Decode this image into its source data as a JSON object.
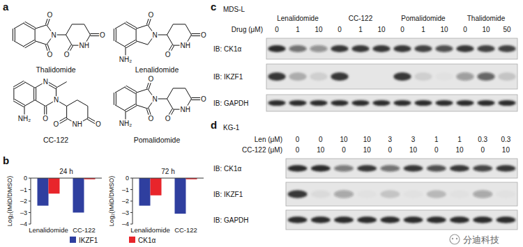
{
  "panel_a": {
    "label": "a",
    "molecules": [
      {
        "name": "Thalidomide",
        "atom_labels": [
          "O",
          "O",
          "N",
          "O",
          "O",
          "NH"
        ]
      },
      {
        "name": "Lenalidomide",
        "atom_labels": [
          "O",
          "N",
          "O",
          "O",
          "NH",
          "NH₂"
        ]
      },
      {
        "name": "CC-122",
        "atom_labels": [
          "N",
          "N",
          "O",
          "NH₂",
          "NH",
          "O",
          "O"
        ]
      },
      {
        "name": "Pomalidomide",
        "atom_labels": [
          "O",
          "O",
          "N",
          "O",
          "O",
          "NH",
          "NH₂"
        ]
      }
    ]
  },
  "panel_b": {
    "label": "b"
  },
  "chart_data": [
    {
      "type": "bar",
      "title": "24 h",
      "y_label": "Log₂(IMiD/DMSO)",
      "categories": [
        "Lenalidomide",
        "CC-122"
      ],
      "series": [
        {
          "name": "IKZF1",
          "color": "#2f3f9f",
          "values": [
            -2.4,
            -3.0
          ]
        },
        {
          "name": "CK1α",
          "color": "#e8252b",
          "values": [
            -1.35,
            -0.1
          ]
        }
      ],
      "ylim": [
        -4,
        0
      ],
      "yticks": [
        0,
        {
          "value": -1,
          "label": "–1"
        },
        {
          "value": -2,
          "label": "–2"
        },
        {
          "value": -3,
          "label": "–3"
        },
        {
          "value": -4,
          "label": "–4"
        }
      ],
      "legend": "bottom"
    },
    {
      "type": "bar",
      "title": "72 h",
      "y_label": "Log₂(IMiD/DMSO)",
      "categories": [
        "Lenalidomide",
        "CC-122"
      ],
      "series": [
        {
          "name": "IKZF1",
          "color": "#2f3f9f",
          "values": [
            -2.4,
            -3.1
          ]
        },
        {
          "name": "CK1α",
          "color": "#e8252b",
          "values": [
            -1.5,
            -0.1
          ]
        }
      ],
      "ylim": [
        -4,
        0
      ],
      "yticks": [
        0,
        {
          "value": -1,
          "label": "–1"
        },
        {
          "value": -2,
          "label": "–2"
        },
        {
          "value": -3,
          "label": "–3"
        },
        {
          "value": -4,
          "label": "–4"
        }
      ]
    }
  ],
  "panel_c": {
    "label": "c",
    "cell_line": "MDS-L",
    "dose_label": "Drug (μM)",
    "groups": [
      {
        "name": "Lenalidomide",
        "doses": [
          0,
          1,
          10
        ]
      },
      {
        "name": "CC-122",
        "doses": [
          0,
          1,
          10
        ]
      },
      {
        "name": "Pomalidomide",
        "doses": [
          0,
          1,
          10
        ]
      },
      {
        "name": "Thalidomide",
        "doses": [
          0,
          10,
          50
        ]
      }
    ],
    "blots": [
      {
        "label": "IB: CK1α",
        "intensity": [
          0.9,
          0.55,
          0.4,
          0.85,
          0.85,
          0.85,
          0.85,
          0.8,
          0.7,
          0.85,
          0.8,
          0.8
        ]
      },
      {
        "label": "IB: IKZF1",
        "intensity": [
          0.85,
          0.25,
          0.1,
          0.85,
          0,
          0,
          0.85,
          0.1,
          0.02,
          0.35,
          0.6,
          0.15
        ]
      },
      {
        "label": "IB: GAPDH",
        "intensity": [
          0.9,
          0.9,
          0.9,
          0.9,
          0.9,
          0.9,
          0.9,
          0.9,
          0.9,
          0.9,
          0.9,
          0.9
        ]
      }
    ]
  },
  "panel_d": {
    "label": "d",
    "cell_line": "KG-1",
    "treatments": [
      {
        "label": "Len (μM)",
        "doses": [
          0,
          0,
          10,
          10,
          3,
          3,
          1,
          1,
          0.3,
          0.3
        ]
      },
      {
        "label": "CC-122 (μM)",
        "doses": [
          0,
          10,
          0,
          10,
          0,
          10,
          0,
          10,
          0,
          10
        ]
      }
    ],
    "blots": [
      {
        "label": "IB: CK1α",
        "intensity": [
          0.9,
          0.9,
          0.5,
          0.85,
          0.55,
          0.85,
          0.7,
          0.85,
          0.75,
          0.85
        ]
      },
      {
        "label": "IB: IKZF1",
        "intensity": [
          0.85,
          0.05,
          0.3,
          0.02,
          0.15,
          0.02,
          0.2,
          0.02,
          0.3,
          0.02
        ]
      },
      {
        "label": "IB: GAPDH",
        "intensity": [
          0.9,
          0.9,
          0.9,
          0.9,
          0.9,
          0.9,
          0.9,
          0.9,
          0.9,
          0.9
        ]
      }
    ]
  },
  "watermark": "分迪科技"
}
